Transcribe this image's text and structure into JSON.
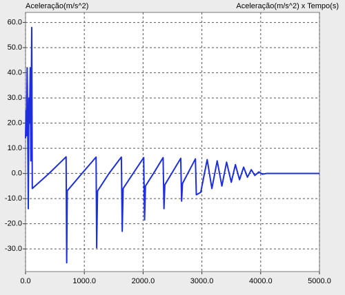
{
  "chart_data": {
    "type": "line",
    "title": "Aceleração(m/s^2) x Tempo(s)",
    "y_label": "Aceleração(m/s^2)",
    "x": [
      0,
      8,
      16,
      28,
      38,
      47,
      58,
      68,
      80,
      90,
      105,
      115,
      400,
      690,
      700,
      710,
      960,
      1200,
      1210,
      1225,
      1420,
      1630,
      1645,
      1660,
      1830,
      2010,
      2025,
      2040,
      2190,
      2340,
      2355,
      2370,
      2640,
      2655,
      2670,
      2890,
      2905,
      2980,
      3090,
      3170,
      3260,
      3340,
      3420,
      3500,
      3570,
      3640,
      3710,
      3775,
      3840,
      3900,
      3970,
      4030,
      4100,
      5000
    ],
    "series": [
      {
        "name": "Aceleração(m/s^2) x Tempo(s)",
        "color": "#1c2ee0",
        "values": [
          14,
          25,
          15,
          42,
          15,
          -14,
          30,
          20,
          42,
          5,
          58,
          -6,
          0,
          6.6,
          -35.5,
          -6.9,
          0,
          6.5,
          -29.5,
          -7,
          0,
          6.5,
          -23,
          -6,
          0,
          6.3,
          -18.5,
          -5,
          0.5,
          6.3,
          -14,
          -4.5,
          6,
          -11,
          -4,
          5.8,
          -8.5,
          -7.5,
          5.5,
          -6,
          5,
          -5,
          4.5,
          -3.5,
          3.5,
          -2.5,
          2.5,
          -1.5,
          1.5,
          -0.8,
          0.6,
          -0.3,
          0,
          0
        ]
      }
    ],
    "xlim": [
      0,
      5000
    ],
    "ylim": [
      -39,
      64
    ],
    "xticks": [
      {
        "value": 0,
        "label": "0.0"
      },
      {
        "value": 1000,
        "label": "1000.0"
      },
      {
        "value": 2000,
        "label": "2000.0"
      },
      {
        "value": 3000,
        "label": "3000.0"
      },
      {
        "value": 4000,
        "label": "4000.0"
      },
      {
        "value": 5000,
        "label": "5000.0"
      }
    ],
    "yticks": [
      {
        "value": 60,
        "label": "60.0"
      },
      {
        "value": 50,
        "label": "50.0"
      },
      {
        "value": 40,
        "label": "40.0"
      },
      {
        "value": 30,
        "label": "30.0"
      },
      {
        "value": 20,
        "label": "20.0"
      },
      {
        "value": 10,
        "label": "10.0"
      },
      {
        "value": 0,
        "label": "0.0"
      },
      {
        "value": -10,
        "label": "-10.0"
      },
      {
        "value": -20,
        "label": "-20.0"
      },
      {
        "value": -30,
        "label": "-30.0"
      }
    ],
    "grid": true
  }
}
